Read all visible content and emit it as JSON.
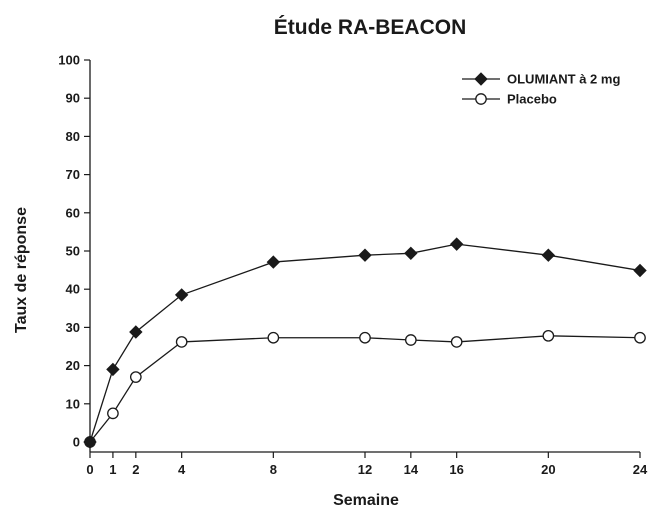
{
  "chart_data": {
    "type": "line",
    "title": "Étude RA-BEACON",
    "xlabel": "Semaine",
    "ylabel": "Taux de réponse",
    "x_ticks": [
      0,
      1,
      2,
      4,
      8,
      12,
      14,
      16,
      20,
      24
    ],
    "y_ticks": [
      0,
      10,
      20,
      30,
      40,
      50,
      60,
      70,
      80,
      90,
      100
    ],
    "xlim": [
      0,
      24
    ],
    "ylim": [
      0,
      100
    ],
    "grid": false,
    "legend_position": "top-right",
    "series": [
      {
        "name": "OLUMIANT à 2 mg",
        "marker": "filled-diamond",
        "color": "#1a1a1a",
        "x": [
          0,
          1,
          2,
          4,
          8,
          12,
          14,
          16,
          20,
          24
        ],
        "y": [
          0,
          19,
          28.8,
          38.5,
          47.1,
          48.9,
          49.4,
          51.8,
          48.9,
          44.9
        ]
      },
      {
        "name": "Placebo",
        "marker": "open-circle",
        "color": "#1a1a1a",
        "x": [
          0,
          1,
          2,
          4,
          8,
          12,
          14,
          16,
          20,
          24
        ],
        "y": [
          0,
          7.5,
          17,
          26.2,
          27.3,
          27.3,
          26.7,
          26.2,
          27.8,
          27.3
        ]
      }
    ]
  }
}
